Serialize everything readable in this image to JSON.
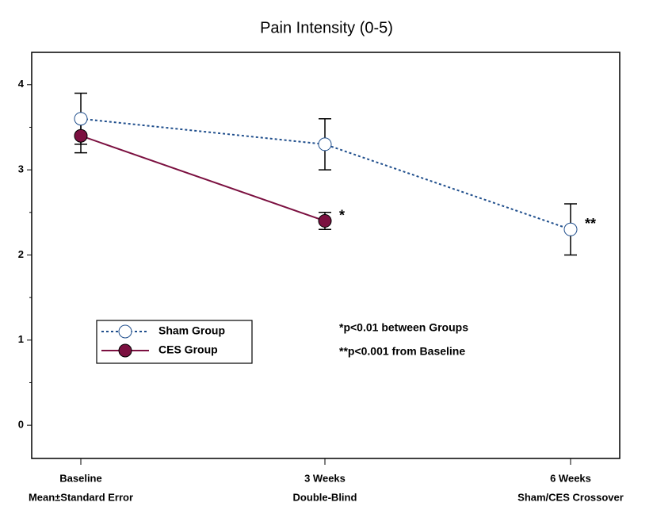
{
  "chart_data": {
    "type": "line",
    "title": "Pain Intensity (0-5)",
    "categories": [
      "Baseline",
      "3 Weeks",
      "6 Weeks"
    ],
    "category_sublabels": [
      "Mean±Standard Error",
      "Double-Blind",
      "Sham/CES Crossover"
    ],
    "series": [
      {
        "name": "Sham Group",
        "color": "#1f4e8c",
        "dashed": true,
        "marker_fill": "#ffffff",
        "values": [
          3.6,
          3.3,
          2.3
        ],
        "errors": [
          0.3,
          0.3,
          0.3
        ]
      },
      {
        "name": "CES Group",
        "color": "#7b1040",
        "dashed": false,
        "marker_fill": "#7b1040",
        "values": [
          3.4,
          2.4,
          null
        ],
        "errors": [
          0.2,
          0.1,
          null
        ]
      }
    ],
    "point_annotations": [
      {
        "series": 1,
        "index": 1,
        "text": "*"
      },
      {
        "series": 0,
        "index": 2,
        "text": "**"
      }
    ],
    "notes": [
      "*p<0.01 between Groups",
      "**p<0.001 from Baseline"
    ],
    "ylim": [
      -0.39,
      4.38
    ],
    "yticks": [
      0,
      1,
      2,
      3,
      4
    ],
    "yminorticks": [
      0.5,
      1.5,
      2.5,
      3.5
    ],
    "grid": false
  }
}
